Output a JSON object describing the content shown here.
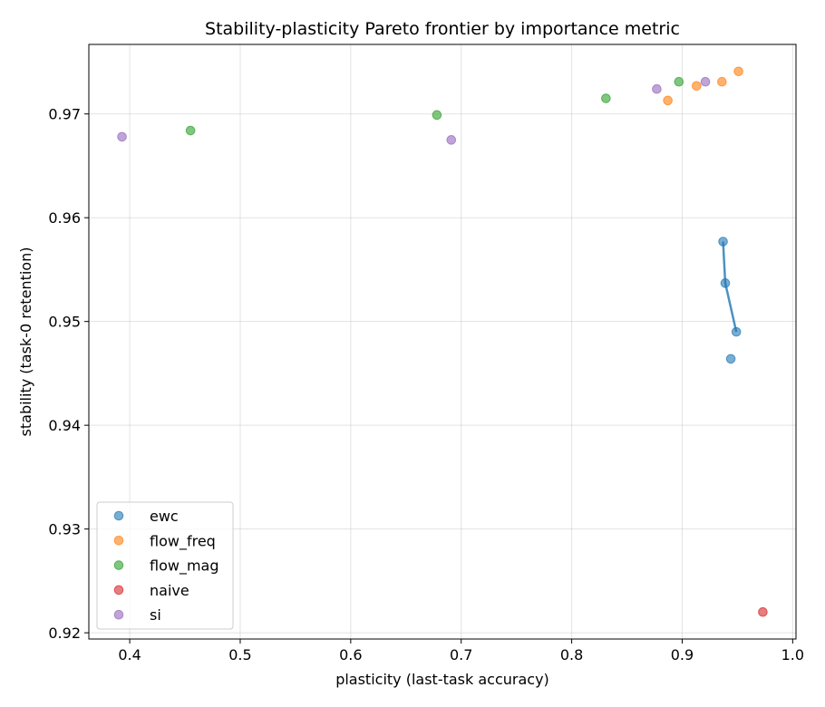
{
  "chart_data": {
    "type": "scatter",
    "title": "Stability-plasticity Pareto frontier by importance metric",
    "xlabel": "plasticity  (last-task accuracy)",
    "ylabel": "stability  (task-0 retention)",
    "xlim": [
      0.363,
      1.003
    ],
    "ylim": [
      0.9194,
      0.9767
    ],
    "xticks": [
      0.4,
      0.5,
      0.6,
      0.7,
      0.8,
      0.9,
      1.0
    ],
    "xtick_labels": [
      "0.4",
      "0.5",
      "0.6",
      "0.7",
      "0.8",
      "0.9",
      "1.0"
    ],
    "yticks": [
      0.92,
      0.93,
      0.94,
      0.95,
      0.96,
      0.97
    ],
    "ytick_labels": [
      "0.92",
      "0.93",
      "0.94",
      "0.95",
      "0.96",
      "0.97"
    ],
    "grid": true,
    "legend_position": "lower-left",
    "series": [
      {
        "name": "ewc",
        "color": "#1f77b4",
        "points": [
          [
            0.937,
            0.9577
          ],
          [
            0.939,
            0.9537
          ],
          [
            0.949,
            0.949
          ],
          [
            0.944,
            0.9464
          ]
        ],
        "frontier": [
          [
            0.937,
            0.9577
          ],
          [
            0.939,
            0.9537
          ],
          [
            0.949,
            0.949
          ]
        ]
      },
      {
        "name": "flow_freq",
        "color": "#ff7f0e",
        "points": [
          [
            0.887,
            0.9713
          ],
          [
            0.913,
            0.9727
          ],
          [
            0.936,
            0.9731
          ],
          [
            0.951,
            0.9741
          ]
        ]
      },
      {
        "name": "flow_mag",
        "color": "#2ca02c",
        "points": [
          [
            0.455,
            0.9684
          ],
          [
            0.678,
            0.9699
          ],
          [
            0.831,
            0.9715
          ],
          [
            0.897,
            0.9731
          ]
        ]
      },
      {
        "name": "naive",
        "color": "#d62728",
        "points": [
          [
            0.973,
            0.922
          ]
        ]
      },
      {
        "name": "si",
        "color": "#9467bd",
        "points": [
          [
            0.393,
            0.9678
          ],
          [
            0.691,
            0.9675
          ],
          [
            0.877,
            0.9724
          ],
          [
            0.921,
            0.9731
          ]
        ]
      }
    ]
  }
}
